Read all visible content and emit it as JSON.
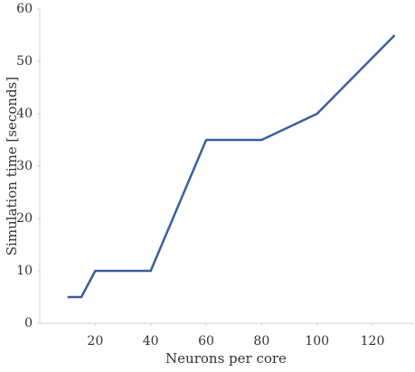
{
  "chart_data": {
    "type": "line",
    "x_label": "Neurons per core",
    "y_label": "Simulation time [seconds]",
    "x": [
      10,
      15,
      20,
      40,
      60,
      80,
      100,
      128
    ],
    "series": [
      {
        "name": null,
        "color": "#3a5f9e",
        "values": [
          5,
          5,
          10,
          10,
          35,
          35,
          40,
          55
        ]
      }
    ],
    "xlim": [
      0,
      135
    ],
    "xticks": [
      20,
      40,
      60,
      80,
      100,
      120
    ],
    "ylim": [
      0,
      60
    ],
    "yticks": [
      0,
      10,
      20,
      30,
      40,
      50,
      60
    ],
    "grid": false
  }
}
